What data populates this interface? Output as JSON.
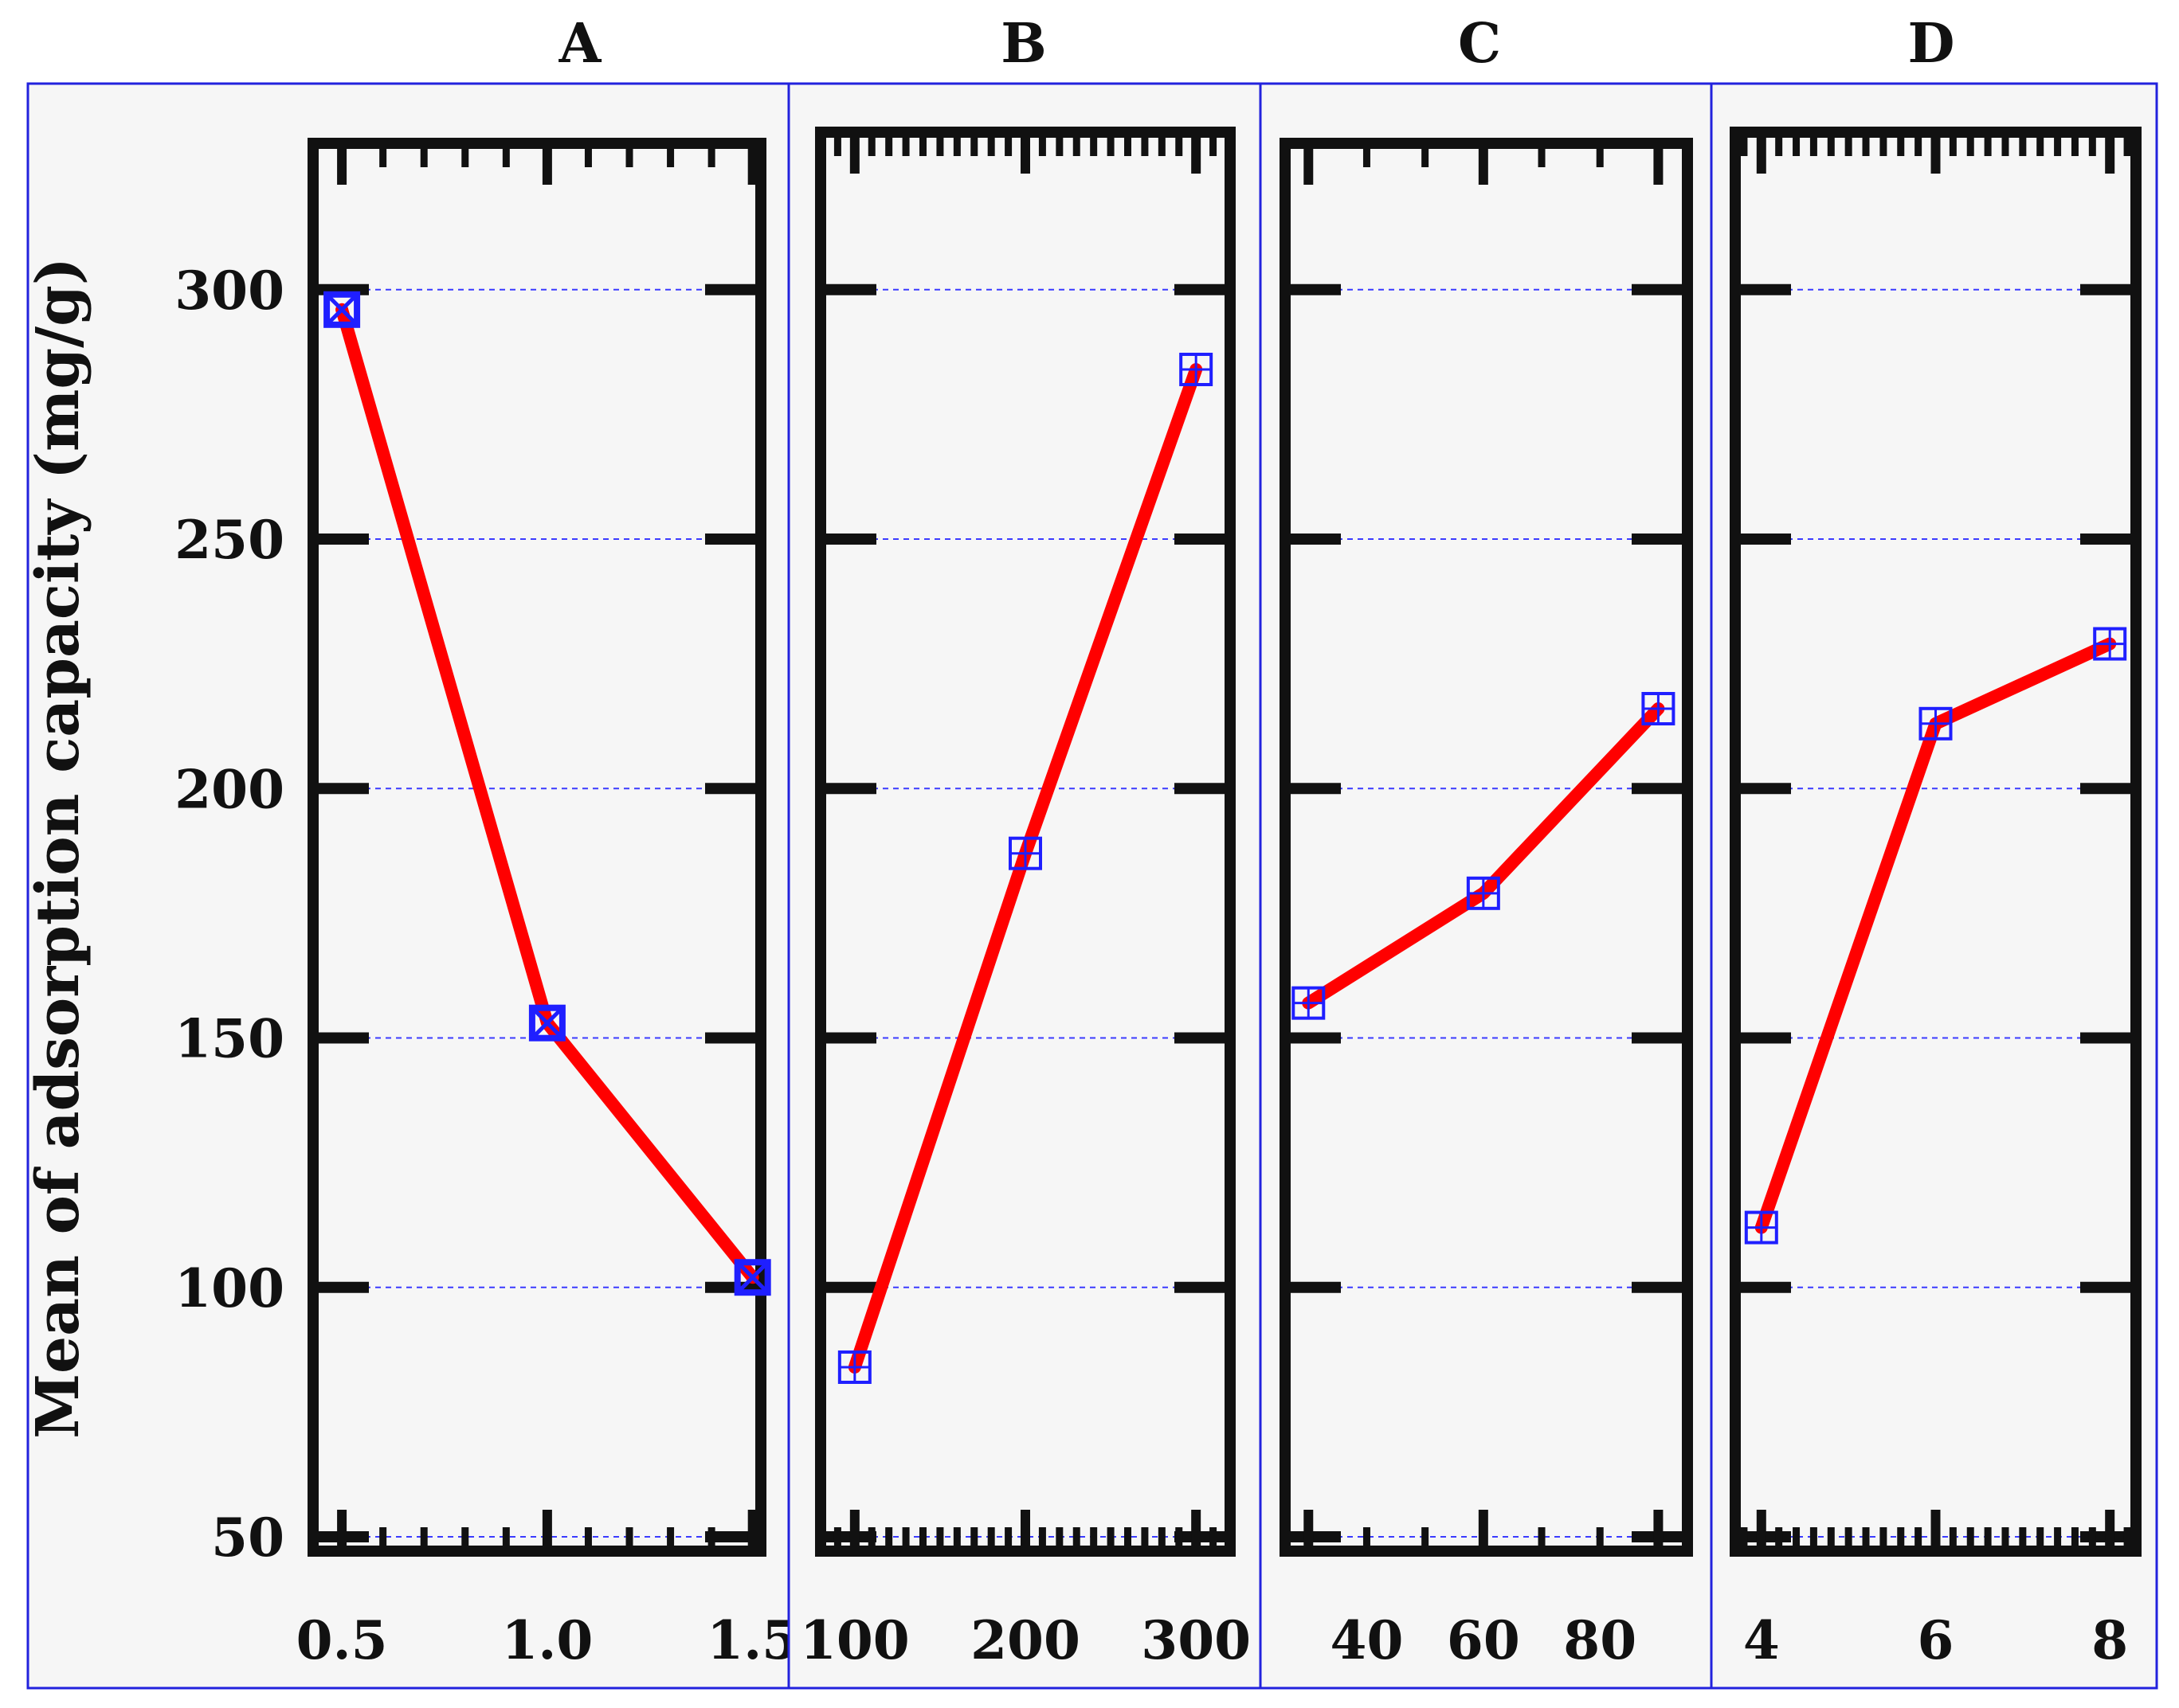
{
  "figure": {
    "ylabel": "Mean of adsorption capacity (mg/g)",
    "y_ticks": [
      "300",
      "250",
      "200",
      "150",
      "100",
      "50"
    ]
  },
  "colors": {
    "line": "#ff0000",
    "marker": "#1f1fff",
    "frame": "#111111",
    "panel_border": "#2222dd",
    "panel_bg": "#f6f6f6",
    "grid": "#3b3bff"
  },
  "chart_data": [
    {
      "type": "line",
      "title": "A",
      "x": [
        0.5,
        1.0,
        1.5
      ],
      "x_tick_labels": [
        "0.5",
        "1.0",
        "1.5"
      ],
      "values": [
        296,
        153,
        102
      ],
      "xlim": [
        0.43,
        1.52
      ],
      "ylim": [
        44,
        330
      ],
      "grid": true
    },
    {
      "type": "line",
      "title": "B",
      "x": [
        100,
        200,
        300
      ],
      "x_tick_labels": [
        "100",
        "200",
        "300"
      ],
      "values": [
        84,
        187,
        284
      ],
      "xlim": [
        80,
        320
      ],
      "ylim": [
        44,
        330
      ],
      "grid": true
    },
    {
      "type": "line",
      "title": "C",
      "x": [
        30,
        60,
        90
      ],
      "x_tick_labels": [
        "40",
        "60",
        "80"
      ],
      "values": [
        157,
        179,
        216
      ],
      "xlim": [
        26,
        95
      ],
      "ylim": [
        44,
        330
      ],
      "grid": true
    },
    {
      "type": "line",
      "title": "D",
      "x": [
        4,
        6,
        8
      ],
      "x_tick_labels": [
        "4",
        "6",
        "8"
      ],
      "values": [
        112,
        213,
        229
      ],
      "xlim": [
        3.7,
        8.3
      ],
      "ylim": [
        44,
        330
      ],
      "grid": true
    }
  ]
}
